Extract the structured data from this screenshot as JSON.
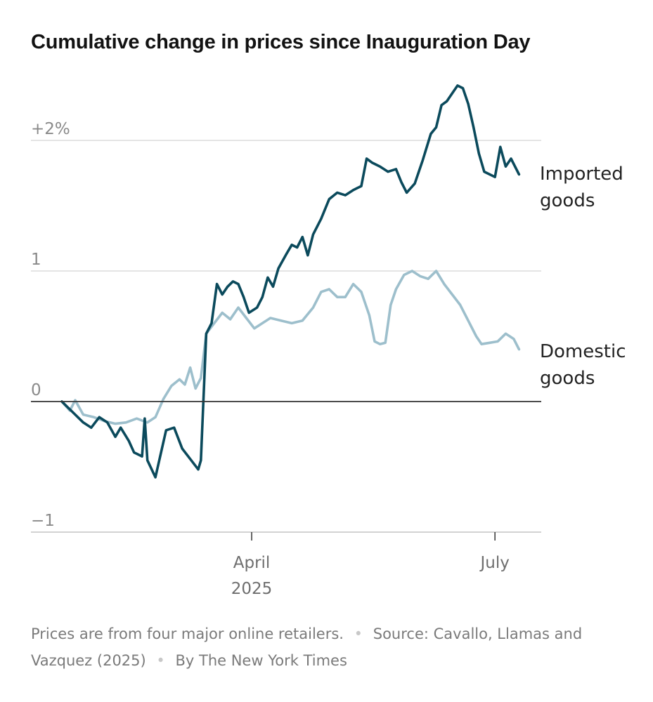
{
  "chart_data": {
    "type": "line",
    "title": "Cumulative change in prices since Inauguration Day",
    "x_start": "2025-01-20",
    "x_end": "2025-07-12",
    "x_ticks": [
      {
        "date": "2025-04-01",
        "label": "April",
        "sublabel": "2025"
      },
      {
        "date": "2025-07-01",
        "label": "July",
        "sublabel": ""
      }
    ],
    "y_ticks": [
      {
        "value": 2,
        "label": "+2%"
      },
      {
        "value": 1,
        "label": "1"
      },
      {
        "value": 0,
        "label": "0"
      },
      {
        "value": -1,
        "label": "−1"
      }
    ],
    "ylim": [
      -1,
      2.5
    ],
    "grid": true,
    "series": [
      {
        "name": "Imported goods",
        "label_lines": [
          "Imported",
          "goods"
        ],
        "color": "#0b4a5c",
        "points": [
          [
            "2025-01-20",
            0.0
          ],
          [
            "2025-01-24",
            -0.08
          ],
          [
            "2025-01-28",
            -0.16
          ],
          [
            "2025-01-31",
            -0.2
          ],
          [
            "2025-02-03",
            -0.12
          ],
          [
            "2025-02-06",
            -0.16
          ],
          [
            "2025-02-09",
            -0.27
          ],
          [
            "2025-02-11",
            -0.2
          ],
          [
            "2025-02-14",
            -0.3
          ],
          [
            "2025-02-16",
            -0.39
          ],
          [
            "2025-02-19",
            -0.42
          ],
          [
            "2025-02-20",
            -0.13
          ],
          [
            "2025-02-21",
            -0.45
          ],
          [
            "2025-02-24",
            -0.58
          ],
          [
            "2025-02-26",
            -0.4
          ],
          [
            "2025-02-28",
            -0.22
          ],
          [
            "2025-03-03",
            -0.2
          ],
          [
            "2025-03-06",
            -0.36
          ],
          [
            "2025-03-09",
            -0.44
          ],
          [
            "2025-03-12",
            -0.52
          ],
          [
            "2025-03-13",
            -0.45
          ],
          [
            "2025-03-15",
            0.52
          ],
          [
            "2025-03-17",
            0.6
          ],
          [
            "2025-03-19",
            0.9
          ],
          [
            "2025-03-21",
            0.82
          ],
          [
            "2025-03-23",
            0.88
          ],
          [
            "2025-03-25",
            0.92
          ],
          [
            "2025-03-27",
            0.9
          ],
          [
            "2025-03-29",
            0.8
          ],
          [
            "2025-03-31",
            0.68
          ],
          [
            "2025-04-03",
            0.72
          ],
          [
            "2025-04-05",
            0.8
          ],
          [
            "2025-04-07",
            0.95
          ],
          [
            "2025-04-09",
            0.88
          ],
          [
            "2025-04-11",
            1.02
          ],
          [
            "2025-04-14",
            1.13
          ],
          [
            "2025-04-16",
            1.2
          ],
          [
            "2025-04-18",
            1.18
          ],
          [
            "2025-04-20",
            1.26
          ],
          [
            "2025-04-22",
            1.12
          ],
          [
            "2025-04-24",
            1.28
          ],
          [
            "2025-04-27",
            1.4
          ],
          [
            "2025-04-30",
            1.55
          ],
          [
            "2025-05-03",
            1.6
          ],
          [
            "2025-05-06",
            1.58
          ],
          [
            "2025-05-09",
            1.62
          ],
          [
            "2025-05-12",
            1.65
          ],
          [
            "2025-05-14",
            1.86
          ],
          [
            "2025-05-16",
            1.83
          ],
          [
            "2025-05-19",
            1.8
          ],
          [
            "2025-05-22",
            1.76
          ],
          [
            "2025-05-25",
            1.78
          ],
          [
            "2025-05-27",
            1.68
          ],
          [
            "2025-05-29",
            1.6
          ],
          [
            "2025-06-01",
            1.67
          ],
          [
            "2025-06-04",
            1.85
          ],
          [
            "2025-06-07",
            2.05
          ],
          [
            "2025-06-09",
            2.1
          ],
          [
            "2025-06-11",
            2.27
          ],
          [
            "2025-06-13",
            2.3
          ],
          [
            "2025-06-15",
            2.36
          ],
          [
            "2025-06-17",
            2.42
          ],
          [
            "2025-06-19",
            2.4
          ],
          [
            "2025-06-21",
            2.28
          ],
          [
            "2025-06-23",
            2.1
          ],
          [
            "2025-06-25",
            1.9
          ],
          [
            "2025-06-27",
            1.76
          ],
          [
            "2025-06-29",
            1.74
          ],
          [
            "2025-07-01",
            1.72
          ],
          [
            "2025-07-03",
            1.95
          ],
          [
            "2025-07-05",
            1.8
          ],
          [
            "2025-07-07",
            1.86
          ],
          [
            "2025-07-10",
            1.74
          ]
        ]
      },
      {
        "name": "Domestic goods",
        "label_lines": [
          "Domestic",
          "goods"
        ],
        "color": "#9dbfcc",
        "points": [
          [
            "2025-01-20",
            0.0
          ],
          [
            "2025-01-23",
            -0.07
          ],
          [
            "2025-01-25",
            0.01
          ],
          [
            "2025-01-28",
            -0.1
          ],
          [
            "2025-02-01",
            -0.12
          ],
          [
            "2025-02-05",
            -0.15
          ],
          [
            "2025-02-09",
            -0.17
          ],
          [
            "2025-02-13",
            -0.16
          ],
          [
            "2025-02-17",
            -0.13
          ],
          [
            "2025-02-21",
            -0.16
          ],
          [
            "2025-02-24",
            -0.12
          ],
          [
            "2025-02-27",
            0.02
          ],
          [
            "2025-03-02",
            0.12
          ],
          [
            "2025-03-05",
            0.17
          ],
          [
            "2025-03-07",
            0.13
          ],
          [
            "2025-03-09",
            0.26
          ],
          [
            "2025-03-11",
            0.1
          ],
          [
            "2025-03-13",
            0.18
          ],
          [
            "2025-03-15",
            0.52
          ],
          [
            "2025-03-18",
            0.6
          ],
          [
            "2025-03-21",
            0.68
          ],
          [
            "2025-03-24",
            0.63
          ],
          [
            "2025-03-27",
            0.72
          ],
          [
            "2025-03-30",
            0.64
          ],
          [
            "2025-04-02",
            0.56
          ],
          [
            "2025-04-05",
            0.6
          ],
          [
            "2025-04-08",
            0.64
          ],
          [
            "2025-04-12",
            0.62
          ],
          [
            "2025-04-16",
            0.6
          ],
          [
            "2025-04-20",
            0.62
          ],
          [
            "2025-04-24",
            0.72
          ],
          [
            "2025-04-27",
            0.84
          ],
          [
            "2025-04-30",
            0.86
          ],
          [
            "2025-05-03",
            0.8
          ],
          [
            "2025-05-06",
            0.8
          ],
          [
            "2025-05-09",
            0.9
          ],
          [
            "2025-05-12",
            0.84
          ],
          [
            "2025-05-15",
            0.66
          ],
          [
            "2025-05-17",
            0.46
          ],
          [
            "2025-05-19",
            0.44
          ],
          [
            "2025-05-21",
            0.45
          ],
          [
            "2025-05-23",
            0.74
          ],
          [
            "2025-05-25",
            0.86
          ],
          [
            "2025-05-28",
            0.97
          ],
          [
            "2025-05-31",
            1.0
          ],
          [
            "2025-06-03",
            0.96
          ],
          [
            "2025-06-06",
            0.94
          ],
          [
            "2025-06-09",
            1.0
          ],
          [
            "2025-06-12",
            0.9
          ],
          [
            "2025-06-15",
            0.82
          ],
          [
            "2025-06-18",
            0.74
          ],
          [
            "2025-06-21",
            0.62
          ],
          [
            "2025-06-24",
            0.5
          ],
          [
            "2025-06-26",
            0.44
          ],
          [
            "2025-06-29",
            0.45
          ],
          [
            "2025-07-02",
            0.46
          ],
          [
            "2025-07-05",
            0.52
          ],
          [
            "2025-07-08",
            0.48
          ],
          [
            "2025-07-10",
            0.4
          ]
        ]
      }
    ]
  },
  "footer": {
    "note": "Prices are from four major online retailers.",
    "source": "Source: Cavallo, Llamas and Vazquez (2025)",
    "credit": "By The New York Times",
    "separator": "•"
  }
}
